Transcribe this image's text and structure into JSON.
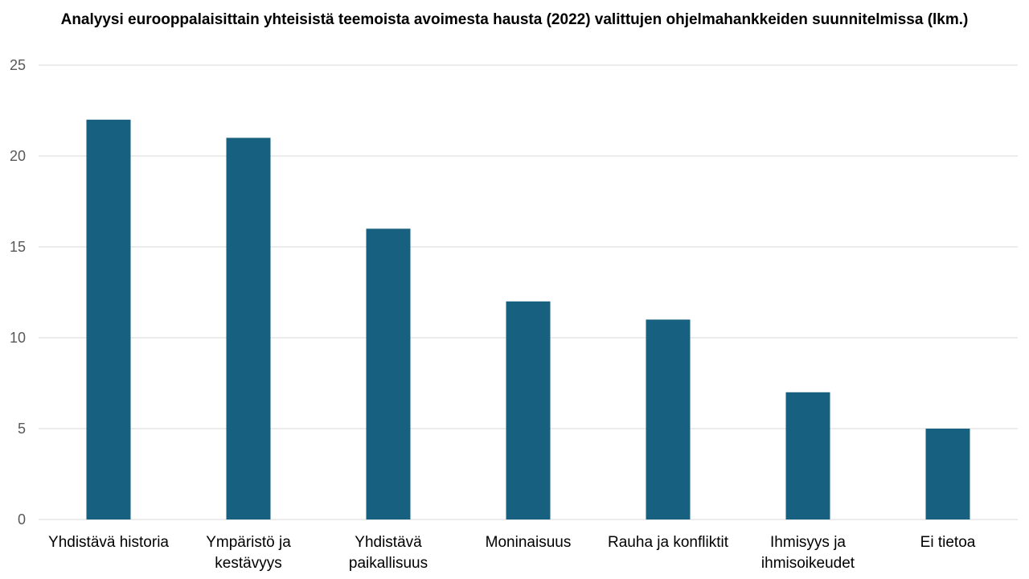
{
  "chart_data": {
    "type": "bar",
    "title": "Analyysi eurooppalaisittain yhteisistä teemoista avoimesta hausta (2022) valittujen ohjelmahankkeiden suunnitelmissa (lkm.)",
    "xlabel": "",
    "ylabel": "",
    "categories": [
      "Yhdistävä historia",
      "Ympäristö ja kestävyys",
      "Yhdistävä paikallisuus",
      "Moninaisuus",
      "Rauha ja konfliktit",
      "Ihmisyys ja ihmisoikeudet",
      "Ei tietoa"
    ],
    "category_lines": [
      [
        "Yhdistävä historia"
      ],
      [
        "Ympäristö ja",
        "kestävyys"
      ],
      [
        "Yhdistävä",
        "paikallisuus"
      ],
      [
        "Moninaisuus"
      ],
      [
        "Rauha ja konfliktit"
      ],
      [
        "Ihmisyys ja",
        "ihmisoikeudet"
      ],
      [
        "Ei tietoa"
      ]
    ],
    "values": [
      22,
      21,
      16,
      12,
      11,
      7,
      5
    ],
    "ylim": [
      0,
      25
    ],
    "yticks": [
      0,
      5,
      10,
      15,
      20,
      25
    ],
    "grid": true,
    "legend": "none",
    "bar_color": "#17607f",
    "grid_color": "#d9d9d9"
  }
}
